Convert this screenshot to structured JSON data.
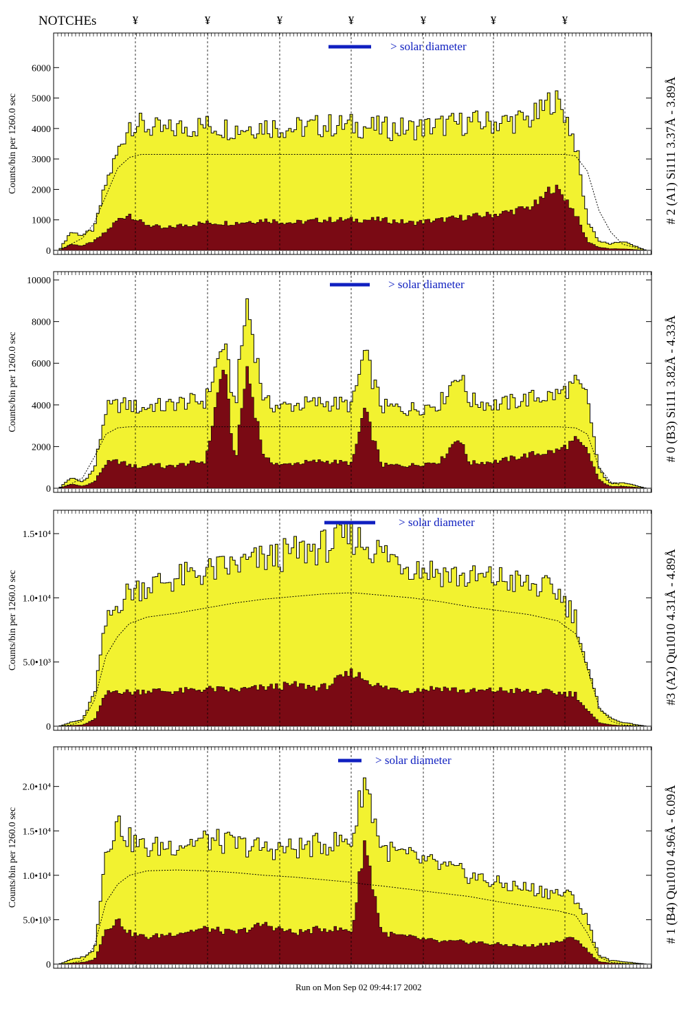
{
  "header": {
    "notches_label": "NOTCHEs",
    "notch_symbol": "¥"
  },
  "footer": {
    "run_text": "Run on Mon Sep 02 09:44:17 2002"
  },
  "colors": {
    "fill": "#f2f230",
    "lower": "#7a0a14",
    "text_blue": "#1020c0",
    "line": "#000000"
  },
  "chart_data": [
    {
      "type": "area",
      "side_label": "# 2 (A1) Si111  3.37Å - 3.89Å",
      "ylabel": "Counts/bin per    1260.0 sec",
      "legend": "> solar diameter",
      "y_ticks": [
        "0",
        "1000",
        "2000",
        "3000",
        "4000",
        "5000",
        "6000"
      ],
      "ylim": [
        0,
        7000
      ],
      "x": [
        0,
        0.02,
        0.04,
        0.06,
        0.08,
        0.1,
        0.12,
        0.14,
        0.16,
        0.18,
        0.2,
        0.25,
        0.3,
        0.35,
        0.4,
        0.45,
        0.5,
        0.55,
        0.6,
        0.65,
        0.7,
        0.75,
        0.8,
        0.82,
        0.84,
        0.86,
        0.88,
        0.9,
        0.92,
        0.94,
        0.96,
        1
      ],
      "upper": [
        0,
        600,
        500,
        700,
        2200,
        3200,
        4200,
        4100,
        4000,
        3900,
        4000,
        4100,
        4000,
        4100,
        4000,
        4100,
        4100,
        4000,
        4000,
        4100,
        4200,
        4200,
        4300,
        4500,
        5000,
        4600,
        3500,
        1000,
        300,
        200,
        300,
        0
      ],
      "lower": [
        0,
        200,
        150,
        300,
        600,
        1000,
        1200,
        900,
        800,
        700,
        800,
        900,
        900,
        1000,
        900,
        1000,
        1000,
        1000,
        900,
        1000,
        1100,
        1200,
        1400,
        1600,
        2100,
        1800,
        1200,
        300,
        100,
        50,
        50,
        0
      ],
      "model": [
        0,
        200,
        400,
        900,
        1800,
        2700,
        3050,
        3150,
        3150,
        3150,
        3150,
        3150,
        3150,
        3150,
        3150,
        3150,
        3150,
        3150,
        3150,
        3150,
        3150,
        3150,
        3150,
        3150,
        3150,
        3150,
        3100,
        2600,
        1300,
        600,
        200,
        0
      ]
    },
    {
      "type": "area",
      "side_label": "# 0 (B3) Si111  3.82Å - 4.33Å",
      "ylabel": "Counts/bin per    1260.0 sec",
      "legend": "> solar diameter",
      "y_ticks": [
        "0",
        "2000",
        "4000",
        "6000",
        "8000",
        "10000"
      ],
      "ylim": [
        0,
        10200
      ],
      "x": [
        0,
        0.02,
        0.04,
        0.06,
        0.08,
        0.1,
        0.12,
        0.14,
        0.16,
        0.18,
        0.2,
        0.25,
        0.28,
        0.3,
        0.32,
        0.35,
        0.38,
        0.4,
        0.45,
        0.5,
        0.52,
        0.55,
        0.6,
        0.65,
        0.68,
        0.7,
        0.75,
        0.8,
        0.85,
        0.88,
        0.9,
        0.92,
        0.94,
        0.96,
        1
      ],
      "upper": [
        0,
        500,
        300,
        900,
        3800,
        4000,
        4000,
        3800,
        4000,
        3900,
        4100,
        4200,
        7000,
        3900,
        9000,
        4100,
        3900,
        4000,
        4100,
        4000,
        6500,
        3900,
        3800,
        4100,
        5600,
        4200,
        4000,
        4300,
        4500,
        5000,
        4400,
        900,
        200,
        300,
        0
      ],
      "lower": [
        0,
        200,
        100,
        300,
        1200,
        1300,
        1100,
        1000,
        1200,
        1000,
        1100,
        1300,
        6000,
        1200,
        5800,
        1400,
        1100,
        1200,
        1300,
        1200,
        3800,
        1100,
        1100,
        1300,
        2500,
        1200,
        1300,
        1600,
        1800,
        2300,
        1800,
        400,
        80,
        100,
        0
      ],
      "model": [
        0,
        200,
        500,
        1500,
        2600,
        2900,
        2950,
        2950,
        2950,
        2950,
        2950,
        2950,
        2950,
        2950,
        2950,
        2950,
        2950,
        2950,
        2950,
        2950,
        2950,
        2950,
        2950,
        2950,
        2950,
        2950,
        2950,
        2950,
        2950,
        2900,
        2600,
        1000,
        300,
        100,
        0
      ]
    },
    {
      "type": "area",
      "side_label": "#3 (A2) Qu1010  4.31Å - 4.89Å",
      "ylabel": "Counts/bin per    1260.0 sec",
      "legend": "> solar diameter",
      "y_ticks": [
        "0",
        "5.0•10³",
        "1.0•10⁴",
        "1.5•10⁴"
      ],
      "ylim": [
        0,
        16500
      ],
      "x": [
        0,
        0.02,
        0.04,
        0.06,
        0.08,
        0.1,
        0.12,
        0.15,
        0.2,
        0.25,
        0.3,
        0.35,
        0.4,
        0.45,
        0.5,
        0.55,
        0.6,
        0.65,
        0.7,
        0.75,
        0.8,
        0.85,
        0.88,
        0.9,
        0.92,
        0.94,
        0.96,
        1
      ],
      "upper": [
        0,
        300,
        500,
        2500,
        8000,
        9500,
        10500,
        11000,
        11500,
        12000,
        12500,
        13000,
        13500,
        14000,
        14800,
        13500,
        12500,
        12000,
        11500,
        11500,
        11000,
        10500,
        8500,
        4500,
        1500,
        600,
        300,
        0
      ],
      "lower": [
        0,
        50,
        100,
        500,
        2500,
        2800,
        2600,
        2800,
        2700,
        2900,
        2800,
        3000,
        3200,
        3000,
        4200,
        3000,
        2800,
        3000,
        2700,
        2800,
        2700,
        2600,
        2500,
        1200,
        300,
        100,
        50,
        0
      ],
      "model": [
        0,
        100,
        400,
        2000,
        5500,
        7000,
        8000,
        8500,
        8800,
        9200,
        9600,
        9900,
        10100,
        10300,
        10400,
        10200,
        10000,
        9700,
        9300,
        9000,
        8700,
        8200,
        7200,
        4500,
        1500,
        400,
        100,
        0
      ]
    },
    {
      "type": "area",
      "side_label": "# 1 (B4) Qu1010 4.96Å - 6.09Å",
      "ylabel": "Counts/bin per    1260.0 sec",
      "legend": "> solar diameter",
      "y_ticks": [
        "0",
        "5.0•10³",
        "1.0•10⁴",
        "1.5•10⁴",
        "2.0•10⁴"
      ],
      "ylim": [
        0,
        24000
      ],
      "x": [
        0,
        0.02,
        0.04,
        0.06,
        0.08,
        0.1,
        0.12,
        0.15,
        0.2,
        0.25,
        0.3,
        0.35,
        0.4,
        0.45,
        0.5,
        0.52,
        0.55,
        0.6,
        0.65,
        0.7,
        0.75,
        0.8,
        0.85,
        0.88,
        0.9,
        0.92,
        0.94,
        0.96,
        1
      ],
      "upper": [
        0,
        500,
        800,
        1500,
        13000,
        16000,
        14000,
        13000,
        13500,
        14000,
        13500,
        13000,
        13000,
        13500,
        14000,
        21000,
        13000,
        12000,
        11000,
        10000,
        9000,
        8500,
        8000,
        7500,
        5000,
        1000,
        400,
        300,
        0
      ],
      "lower": [
        0,
        100,
        200,
        500,
        4000,
        5000,
        3500,
        3000,
        3500,
        4000,
        3500,
        4500,
        3500,
        4000,
        3800,
        14000,
        3500,
        3000,
        2500,
        2500,
        2200,
        2000,
        2500,
        3000,
        1500,
        300,
        100,
        50,
        0
      ],
      "model": [
        0,
        100,
        400,
        2000,
        7000,
        9000,
        10000,
        10500,
        10600,
        10500,
        10300,
        10000,
        9800,
        9500,
        9200,
        9000,
        8800,
        8400,
        8000,
        7600,
        7000,
        6500,
        6000,
        5500,
        3500,
        800,
        200,
        100,
        0
      ]
    }
  ]
}
